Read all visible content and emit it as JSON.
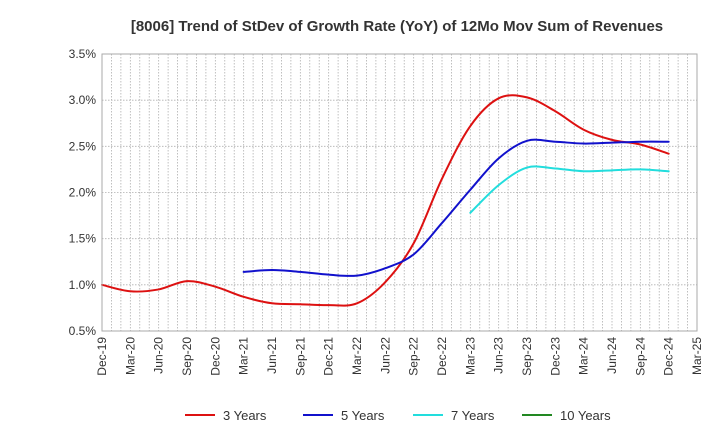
{
  "chart_data": {
    "type": "line",
    "title": "[8006]  Trend of StDev of Growth Rate (YoY) of 12Mo Mov Sum of Revenues",
    "xlabel": "",
    "ylabel": "",
    "ylim": [
      0.5,
      3.5
    ],
    "y_ticks": [
      0.5,
      1.0,
      1.5,
      2.0,
      2.5,
      3.0,
      3.5
    ],
    "y_tick_labels": [
      "0.5%",
      "1.0%",
      "1.5%",
      "2.0%",
      "2.5%",
      "3.0%",
      "3.5%"
    ],
    "categories": [
      "Dec-19",
      "Mar-20",
      "Jun-20",
      "Sep-20",
      "Dec-20",
      "Mar-21",
      "Jun-21",
      "Sep-21",
      "Dec-21",
      "Mar-22",
      "Jun-22",
      "Sep-22",
      "Dec-22",
      "Mar-23",
      "Jun-23",
      "Sep-23",
      "Dec-23",
      "Mar-24",
      "Jun-24",
      "Sep-24",
      "Dec-24",
      "Mar-25"
    ],
    "grid": true,
    "legend_position": "bottom",
    "series": [
      {
        "name": "3 Years",
        "color": "#dd1111",
        "values": [
          1.0,
          0.93,
          0.95,
          1.04,
          0.98,
          0.87,
          0.8,
          0.79,
          0.78,
          0.8,
          1.03,
          1.45,
          2.15,
          2.72,
          3.02,
          3.03,
          2.88,
          2.68,
          2.57,
          2.52,
          2.42,
          null
        ]
      },
      {
        "name": "5 Years",
        "color": "#1111cc",
        "values": [
          null,
          null,
          null,
          null,
          null,
          1.14,
          1.16,
          1.14,
          1.11,
          1.1,
          1.18,
          1.33,
          1.67,
          2.03,
          2.37,
          2.56,
          2.55,
          2.53,
          2.54,
          2.55,
          2.55,
          null
        ]
      },
      {
        "name": "7 Years",
        "color": "#22dddd",
        "values": [
          null,
          null,
          null,
          null,
          null,
          null,
          null,
          null,
          null,
          null,
          null,
          null,
          null,
          1.78,
          2.08,
          2.27,
          2.26,
          2.23,
          2.24,
          2.25,
          2.23,
          null
        ]
      },
      {
        "name": "10 Years",
        "color": "#228822",
        "values": [
          null,
          null,
          null,
          null,
          null,
          null,
          null,
          null,
          null,
          null,
          null,
          null,
          null,
          null,
          null,
          null,
          null,
          null,
          null,
          null,
          null,
          null
        ]
      }
    ]
  }
}
